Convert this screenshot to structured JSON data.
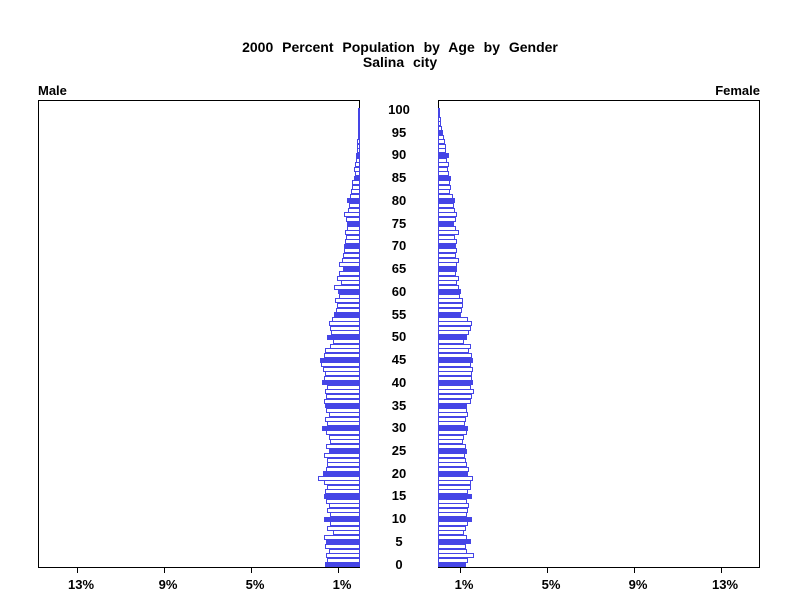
{
  "title": {
    "line1": "2000 Percent Population by Age by Gender",
    "line2": "Salina city"
  },
  "panel_labels": {
    "male": "Male",
    "female": "Female"
  },
  "colors": {
    "bar_outline": "#4545e6",
    "bar_solid_fill": "#4545e6",
    "bar_empty_fill": "#ffffff",
    "axis": "#000000",
    "background": "#ffffff"
  },
  "chart_data": {
    "type": "bar",
    "subtype": "population-pyramid",
    "title": "2000 Percent Population by Age by Gender",
    "subtitle": "Salina city",
    "orientation": "horizontal-mirrored",
    "age_axis": {
      "min": 0,
      "max": 100,
      "tick_step": 5,
      "tick_labels_top_to_bottom": [
        "100",
        "95",
        "90",
        "85",
        "80",
        "75",
        "70",
        "65",
        "60",
        "55",
        "50",
        "45",
        "40",
        "35",
        "30",
        "25",
        "20",
        "15",
        "10",
        "5",
        "0"
      ]
    },
    "pct_axis": {
      "unit": "%",
      "tick_values": [
        1,
        5,
        9,
        13
      ],
      "male_tick_labels_left_to_right": [
        "13%",
        "9%",
        "5%",
        "1%"
      ],
      "female_tick_labels_left_to_right": [
        "1%",
        "5%",
        "9%",
        "13%"
      ],
      "xlim": [
        0,
        14.8
      ],
      "grid": false
    },
    "style_note": "each single year of age is one horizontal bar; ages divisible by 5 are drawn as solid blue bars, other ages are white bars with blue outline",
    "solid_age_interval": 5,
    "legend": null,
    "series": [
      {
        "name": "Male",
        "side": "left",
        "values_age0_to_100": [
          1.55,
          1.45,
          1.5,
          1.4,
          1.55,
          1.5,
          1.6,
          1.2,
          1.45,
          1.35,
          1.6,
          1.35,
          1.45,
          1.4,
          1.5,
          1.6,
          1.55,
          1.45,
          1.6,
          1.9,
          1.65,
          1.5,
          1.45,
          1.45,
          1.6,
          1.4,
          1.5,
          1.35,
          1.4,
          1.5,
          1.7,
          1.45,
          1.55,
          1.4,
          1.5,
          1.55,
          1.6,
          1.5,
          1.55,
          1.45,
          1.7,
          1.6,
          1.55,
          1.65,
          1.75,
          1.8,
          1.6,
          1.55,
          1.35,
          1.2,
          1.45,
          1.3,
          1.35,
          1.4,
          1.25,
          1.15,
          1.05,
          1.0,
          1.1,
          0.9,
          0.95,
          1.15,
          0.85,
          1.0,
          0.9,
          0.75,
          0.9,
          0.8,
          0.75,
          0.7,
          0.7,
          0.65,
          0.6,
          0.65,
          0.55,
          0.55,
          0.6,
          0.7,
          0.5,
          0.45,
          0.55,
          0.4,
          0.35,
          0.3,
          0.3,
          0.25,
          0.2,
          0.25,
          0.2,
          0.15,
          0.15,
          0.1,
          0.1,
          0.08,
          0.06,
          0.05,
          0.04,
          0.03,
          0.03,
          0.02,
          0.02
        ]
      },
      {
        "name": "Female",
        "side": "right",
        "values_age0_to_100": [
          1.25,
          1.35,
          1.6,
          1.3,
          1.25,
          1.45,
          1.3,
          1.15,
          1.25,
          1.35,
          1.5,
          1.3,
          1.35,
          1.4,
          1.3,
          1.5,
          1.35,
          1.45,
          1.45,
          1.55,
          1.35,
          1.4,
          1.3,
          1.25,
          1.2,
          1.3,
          1.25,
          1.1,
          1.15,
          1.3,
          1.35,
          1.2,
          1.25,
          1.35,
          1.3,
          1.3,
          1.45,
          1.5,
          1.6,
          1.45,
          1.55,
          1.5,
          1.5,
          1.55,
          1.45,
          1.55,
          1.5,
          1.4,
          1.45,
          1.15,
          1.3,
          1.4,
          1.45,
          1.5,
          1.35,
          1.0,
          1.05,
          1.1,
          1.1,
          0.95,
          1.0,
          0.9,
          0.85,
          0.9,
          0.8,
          0.85,
          0.85,
          0.9,
          0.8,
          0.85,
          0.8,
          0.85,
          0.75,
          0.9,
          0.8,
          0.7,
          0.8,
          0.85,
          0.75,
          0.7,
          0.75,
          0.65,
          0.5,
          0.55,
          0.5,
          0.55,
          0.45,
          0.4,
          0.45,
          0.35,
          0.45,
          0.3,
          0.3,
          0.28,
          0.25,
          0.2,
          0.15,
          0.1,
          0.08,
          0.05,
          0.05
        ]
      }
    ]
  }
}
